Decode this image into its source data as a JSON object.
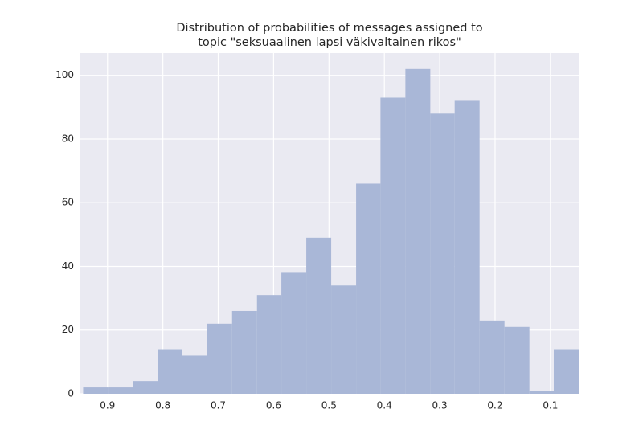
{
  "chart_data": {
    "type": "histogram",
    "title": [
      "Distribution of probabilities of messages assigned to",
      "topic \"seksuaalinen lapsi väkivaltainen rikos\""
    ],
    "bins": [
      0.944,
      0.899,
      0.854,
      0.809,
      0.765,
      0.72,
      0.675,
      0.63,
      0.586,
      0.541,
      0.496,
      0.451,
      0.407,
      0.362,
      0.317,
      0.273,
      0.228,
      0.183,
      0.138,
      0.094,
      0.049
    ],
    "values": [
      2,
      2,
      4,
      14,
      12,
      22,
      26,
      31,
      38,
      49,
      34,
      66,
      93,
      102,
      88,
      92,
      23,
      21,
      1,
      14
    ],
    "color": "#a9b7d7",
    "background": "#eaeaf2",
    "xlim": [
      0.949,
      0.049
    ],
    "xticks": [
      0.9,
      0.8,
      0.7,
      0.6,
      0.5,
      0.4,
      0.3,
      0.2,
      0.1
    ],
    "ylim": [
      0,
      107
    ],
    "yticks": [
      0,
      20,
      40,
      60,
      80,
      100
    ],
    "grid": true
  }
}
